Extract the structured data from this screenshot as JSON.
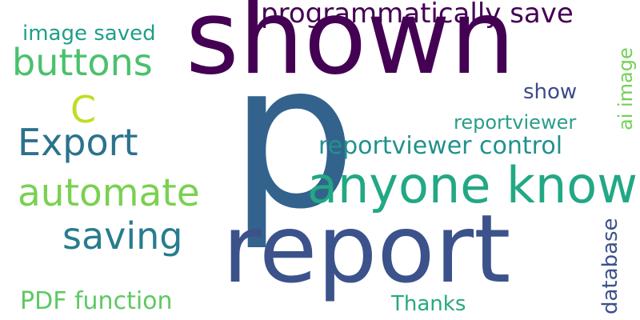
{
  "words": {
    "p": {
      "text": "p",
      "color": "#33638d"
    },
    "shown": {
      "text": "shown",
      "color": "#440154"
    },
    "report": {
      "text": "report",
      "color": "#3b528b"
    },
    "anyone_know": {
      "text": "anyone know",
      "color": "#22a884"
    },
    "automate": {
      "text": "automate",
      "color": "#7ad151"
    },
    "export": {
      "text": "Export",
      "color": "#2c728e"
    },
    "buttons": {
      "text": "buttons",
      "color": "#4ac16d"
    },
    "saving": {
      "text": "saving",
      "color": "#287c8e"
    },
    "c": {
      "text": "C",
      "color": "#bddf26"
    },
    "programmatically_save": {
      "text": "programmatically save",
      "color": "#440154"
    },
    "reportviewer_control": {
      "text": "reportviewer control",
      "color": "#21918c"
    },
    "pdf_function": {
      "text": "PDF function",
      "color": "#5ec962"
    },
    "image_saved": {
      "text": "image saved",
      "color": "#1f9e89"
    },
    "reportviewer": {
      "text": "reportviewer",
      "color": "#2a9d8a"
    },
    "show": {
      "text": "show",
      "color": "#3e4a89"
    },
    "thanks": {
      "text": "Thanks",
      "color": "#26a982"
    },
    "ai_image": {
      "text": "ai image",
      "color": "#73d055"
    },
    "database": {
      "text": "database",
      "color": "#3b528b"
    }
  }
}
